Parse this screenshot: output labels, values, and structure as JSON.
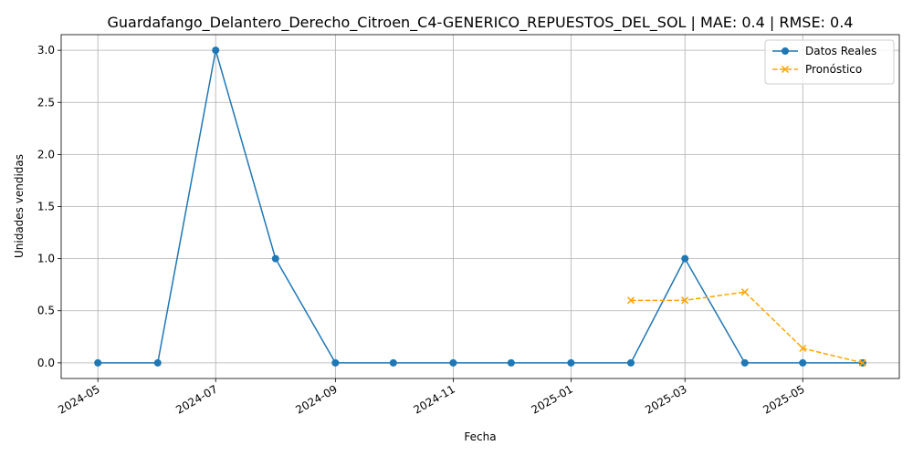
{
  "chart_data": {
    "type": "line",
    "title": "Guardafango_Delantero_Derecho_Citroen_C4-GENERICO_REPUESTOS_DEL_SOL | MAE: 0.4 | RMSE: 0.4",
    "xlabel": "Fecha",
    "ylabel": "Unidades vendidas",
    "x_tick_labels": [
      "2024-05",
      "2024-07",
      "2024-09",
      "2024-11",
      "2025-01",
      "2025-03",
      "2025-05"
    ],
    "x_tick_dates": [
      "2024-05-01",
      "2024-07-01",
      "2024-09-01",
      "2024-11-01",
      "2025-01-01",
      "2025-03-01",
      "2025-05-01"
    ],
    "y_tick_labels": [
      "0.0",
      "0.5",
      "1.0",
      "1.5",
      "2.0",
      "2.5",
      "3.0"
    ],
    "y_ticks": [
      0,
      0.5,
      1.0,
      1.5,
      2.0,
      2.5,
      3.0
    ],
    "xlim": [
      "2024-04-12",
      "2025-06-20"
    ],
    "ylim": [
      -0.15,
      3.15
    ],
    "grid": true,
    "legend_position": "top-right",
    "series": [
      {
        "name": "Datos Reales",
        "color": "#1f77b4",
        "line_style": "solid",
        "marker": "circle",
        "points": [
          {
            "x": "2024-05-01",
            "y": 0
          },
          {
            "x": "2024-06-01",
            "y": 0
          },
          {
            "x": "2024-07-01",
            "y": 3
          },
          {
            "x": "2024-08-01",
            "y": 1
          },
          {
            "x": "2024-09-01",
            "y": 0
          },
          {
            "x": "2024-10-01",
            "y": 0
          },
          {
            "x": "2024-11-01",
            "y": 0
          },
          {
            "x": "2024-12-01",
            "y": 0
          },
          {
            "x": "2025-01-01",
            "y": 0
          },
          {
            "x": "2025-02-01",
            "y": 0
          },
          {
            "x": "2025-03-01",
            "y": 1
          },
          {
            "x": "2025-04-01",
            "y": 0
          },
          {
            "x": "2025-05-01",
            "y": 0
          },
          {
            "x": "2025-06-01",
            "y": 0
          }
        ]
      },
      {
        "name": "Pronóstico",
        "color": "#ffa500",
        "line_style": "dashed",
        "marker": "x",
        "points": [
          {
            "x": "2025-02-01",
            "y": 0.6
          },
          {
            "x": "2025-03-01",
            "y": 0.6
          },
          {
            "x": "2025-04-01",
            "y": 0.68
          },
          {
            "x": "2025-05-01",
            "y": 0.14
          },
          {
            "x": "2025-06-01",
            "y": 0.0
          }
        ]
      }
    ]
  }
}
